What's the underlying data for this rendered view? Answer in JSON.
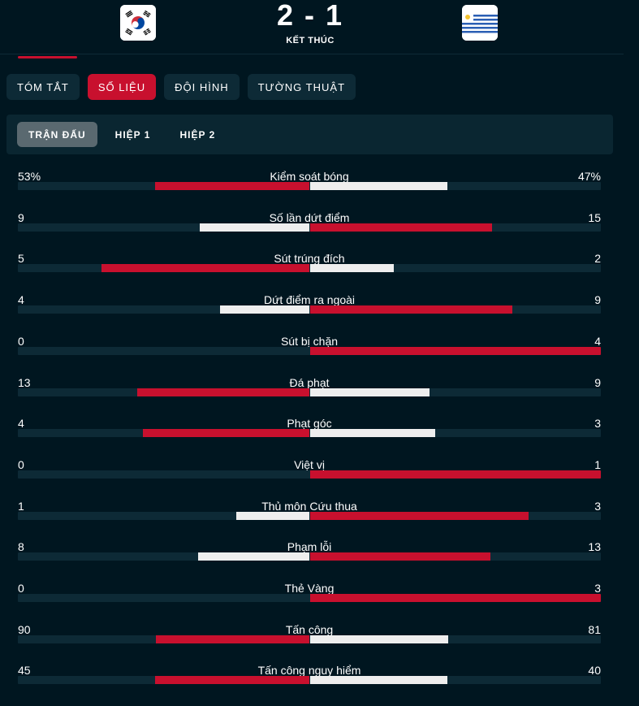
{
  "header": {
    "score": "2 - 1",
    "status": "KẾT THÚC",
    "home_flag_icon": "south-korea-flag-icon",
    "away_flag_icon": "uruguay-flag-icon"
  },
  "tabs": [
    {
      "label": "TÓM TẮT",
      "active": false
    },
    {
      "label": "SỐ LIỆU",
      "active": true
    },
    {
      "label": "ĐỘI HÌNH",
      "active": false
    },
    {
      "label": "TƯỜNG THUẬT",
      "active": false
    }
  ],
  "subtabs": [
    {
      "label": "TRẬN ĐẤU",
      "active": true
    },
    {
      "label": "HIỆP 1",
      "active": false
    },
    {
      "label": "HIỆP 2",
      "active": false
    }
  ],
  "colors": {
    "accent": "#c8102e",
    "leader_bar": "#c8102e",
    "other_bar": "#eeeeee",
    "track": "#0d2a36",
    "background": "#001620"
  },
  "stats": [
    {
      "label": "Kiểm soát bóng",
      "home": "53%",
      "away": "47%",
      "home_value": 53,
      "away_value": 47
    },
    {
      "label": "Số lần dứt điểm",
      "home": "9",
      "away": "15",
      "home_value": 9,
      "away_value": 15
    },
    {
      "label": "Sút trúng đích",
      "home": "5",
      "away": "2",
      "home_value": 5,
      "away_value": 2
    },
    {
      "label": "Dứt điểm ra ngoài",
      "home": "4",
      "away": "9",
      "home_value": 4,
      "away_value": 9
    },
    {
      "label": "Sút bị chặn",
      "home": "0",
      "away": "4",
      "home_value": 0,
      "away_value": 4
    },
    {
      "label": "Đá phạt",
      "home": "13",
      "away": "9",
      "home_value": 13,
      "away_value": 9
    },
    {
      "label": "Phạt góc",
      "home": "4",
      "away": "3",
      "home_value": 4,
      "away_value": 3
    },
    {
      "label": "Việt vị",
      "home": "0",
      "away": "1",
      "home_value": 0,
      "away_value": 1
    },
    {
      "label": "Thủ môn Cứu thua",
      "home": "1",
      "away": "3",
      "home_value": 1,
      "away_value": 3
    },
    {
      "label": "Phạm lỗi",
      "home": "8",
      "away": "13",
      "home_value": 8,
      "away_value": 13
    },
    {
      "label": "Thẻ Vàng",
      "home": "0",
      "away": "3",
      "home_value": 0,
      "away_value": 3
    },
    {
      "label": "Tấn công",
      "home": "90",
      "away": "81",
      "home_value": 90,
      "away_value": 81
    },
    {
      "label": "Tấn công nguy hiểm",
      "home": "45",
      "away": "40",
      "home_value": 45,
      "away_value": 40
    }
  ]
}
